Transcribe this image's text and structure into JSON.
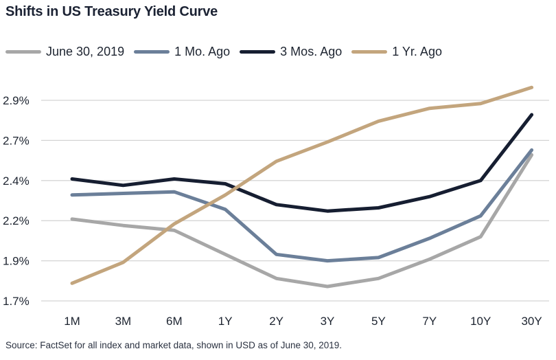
{
  "title": "Shifts in US Treasury Yield Curve",
  "source": "Source: FactSet for all index and market data, shown in USD as of June 30, 2019.",
  "chart_data": {
    "type": "line",
    "title": "Shifts in US Treasury Yield Curve",
    "xlabel": "",
    "ylabel": "",
    "categories": [
      "1M",
      "3M",
      "6M",
      "1Y",
      "2Y",
      "3Y",
      "5Y",
      "7Y",
      "10Y",
      "30Y"
    ],
    "y_tick_labels": [
      "1.7%",
      "1.9%",
      "2.2%",
      "2.4%",
      "2.7%",
      "2.9%"
    ],
    "y_ticks": [
      1.7,
      1.95,
      2.2,
      2.45,
      2.7,
      2.95
    ],
    "ylim": [
      1.7,
      3.05
    ],
    "grid": true,
    "legend_position": "top",
    "series": [
      {
        "name": "June 30, 2019",
        "color": "#a7a7a7",
        "values": [
          2.21,
          2.17,
          2.14,
          1.99,
          1.84,
          1.79,
          1.84,
          1.96,
          2.1,
          2.61
        ]
      },
      {
        "name": "1 Mo. Ago",
        "color": "#6b7f99",
        "values": [
          2.36,
          2.37,
          2.38,
          2.27,
          1.99,
          1.95,
          1.97,
          2.09,
          2.23,
          2.64
        ]
      },
      {
        "name": "3 Mos. Ago",
        "color": "#161e31",
        "values": [
          2.46,
          2.42,
          2.46,
          2.43,
          2.3,
          2.26,
          2.28,
          2.35,
          2.45,
          2.86
        ]
      },
      {
        "name": "1 Yr. Ago",
        "color": "#c3a57d",
        "values": [
          1.81,
          1.94,
          2.18,
          2.36,
          2.57,
          2.69,
          2.82,
          2.9,
          2.93,
          3.03
        ]
      }
    ]
  }
}
